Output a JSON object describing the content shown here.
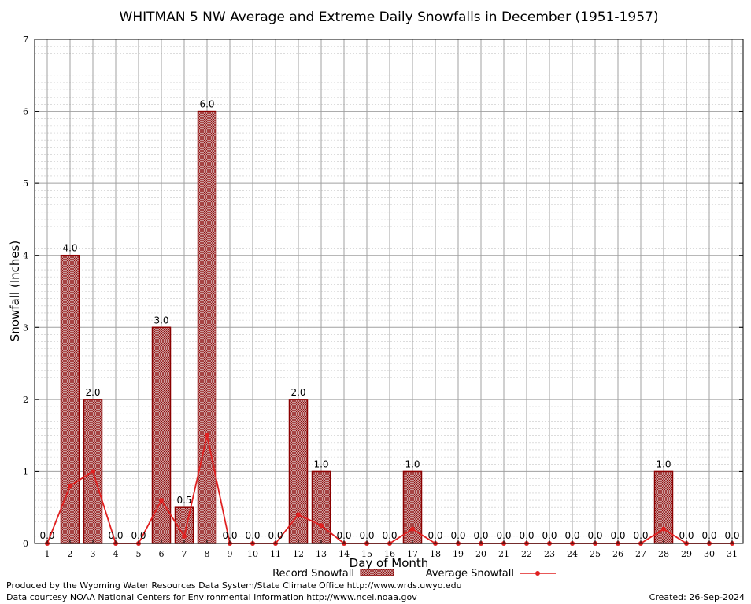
{
  "chart_data": {
    "type": "bar",
    "title": "WHITMAN 5 NW Average and Extreme Daily Snowfalls in December (1951-1957)",
    "xlabel": "Day of Month",
    "ylabel": "Snowfall (Inches)",
    "ylim": [
      0,
      7
    ],
    "yticks": [
      "0",
      "1",
      "2",
      "3",
      "4",
      "5",
      "6",
      "7"
    ],
    "categories": [
      "1",
      "2",
      "3",
      "4",
      "5",
      "6",
      "7",
      "8",
      "9",
      "10",
      "11",
      "12",
      "13",
      "14",
      "15",
      "16",
      "17",
      "18",
      "19",
      "20",
      "21",
      "22",
      "23",
      "24",
      "25",
      "26",
      "27",
      "28",
      "29",
      "30",
      "31"
    ],
    "series": [
      {
        "name": "Record Snowfall",
        "type": "bar",
        "values": [
          0,
          4,
          2,
          0,
          0,
          3,
          0.5,
          6,
          0,
          0,
          0,
          2,
          1,
          0,
          0,
          0,
          1,
          0,
          0,
          0,
          0,
          0,
          0,
          0,
          0,
          0,
          0,
          1,
          0,
          0,
          0
        ],
        "labels": [
          "0.0",
          "4.0",
          "2.0",
          "0.0",
          "0.0",
          "3.0",
          "0.5",
          "6.0",
          "0.0",
          "0.0",
          "0.0",
          "2.0",
          "1.0",
          "0.0",
          "0.0",
          "0.0",
          "1.0",
          "0.0",
          "0.0",
          "0.0",
          "0.0",
          "0.0",
          "0.0",
          "0.0",
          "0.0",
          "0.0",
          "0.0",
          "1.0",
          "0.0",
          "0.0",
          "0.0"
        ]
      },
      {
        "name": "Average Snowfall",
        "type": "line",
        "values": [
          0,
          0.8,
          1.0,
          0,
          0,
          0.6,
          0.1,
          1.5,
          0,
          0,
          0,
          0.4,
          0.25,
          0,
          0,
          0,
          0.2,
          0,
          0,
          0,
          0,
          0,
          0,
          0,
          0,
          0,
          0,
          0.2,
          0,
          0,
          0
        ]
      }
    ],
    "grid": true,
    "legend": "bottom",
    "colors": {
      "bar_edge": "#8b0000",
      "bar_fill": "#c9a3a3",
      "line": "#e02020",
      "grid": "#a0a0a0",
      "minor_grid": "#c8c8c8"
    }
  },
  "legend": {
    "record_label": "Record Snowfall",
    "average_label": "Average Snowfall"
  },
  "footer": {
    "produced_by": "Produced by the Wyoming Water Resources Data System/State Climate Office http://www.wrds.uwyo.edu",
    "data_courtesy": "Data courtesy NOAA National Centers for Environmental Information http://www.ncei.noaa.gov",
    "created": "Created:  26-Sep-2024"
  }
}
